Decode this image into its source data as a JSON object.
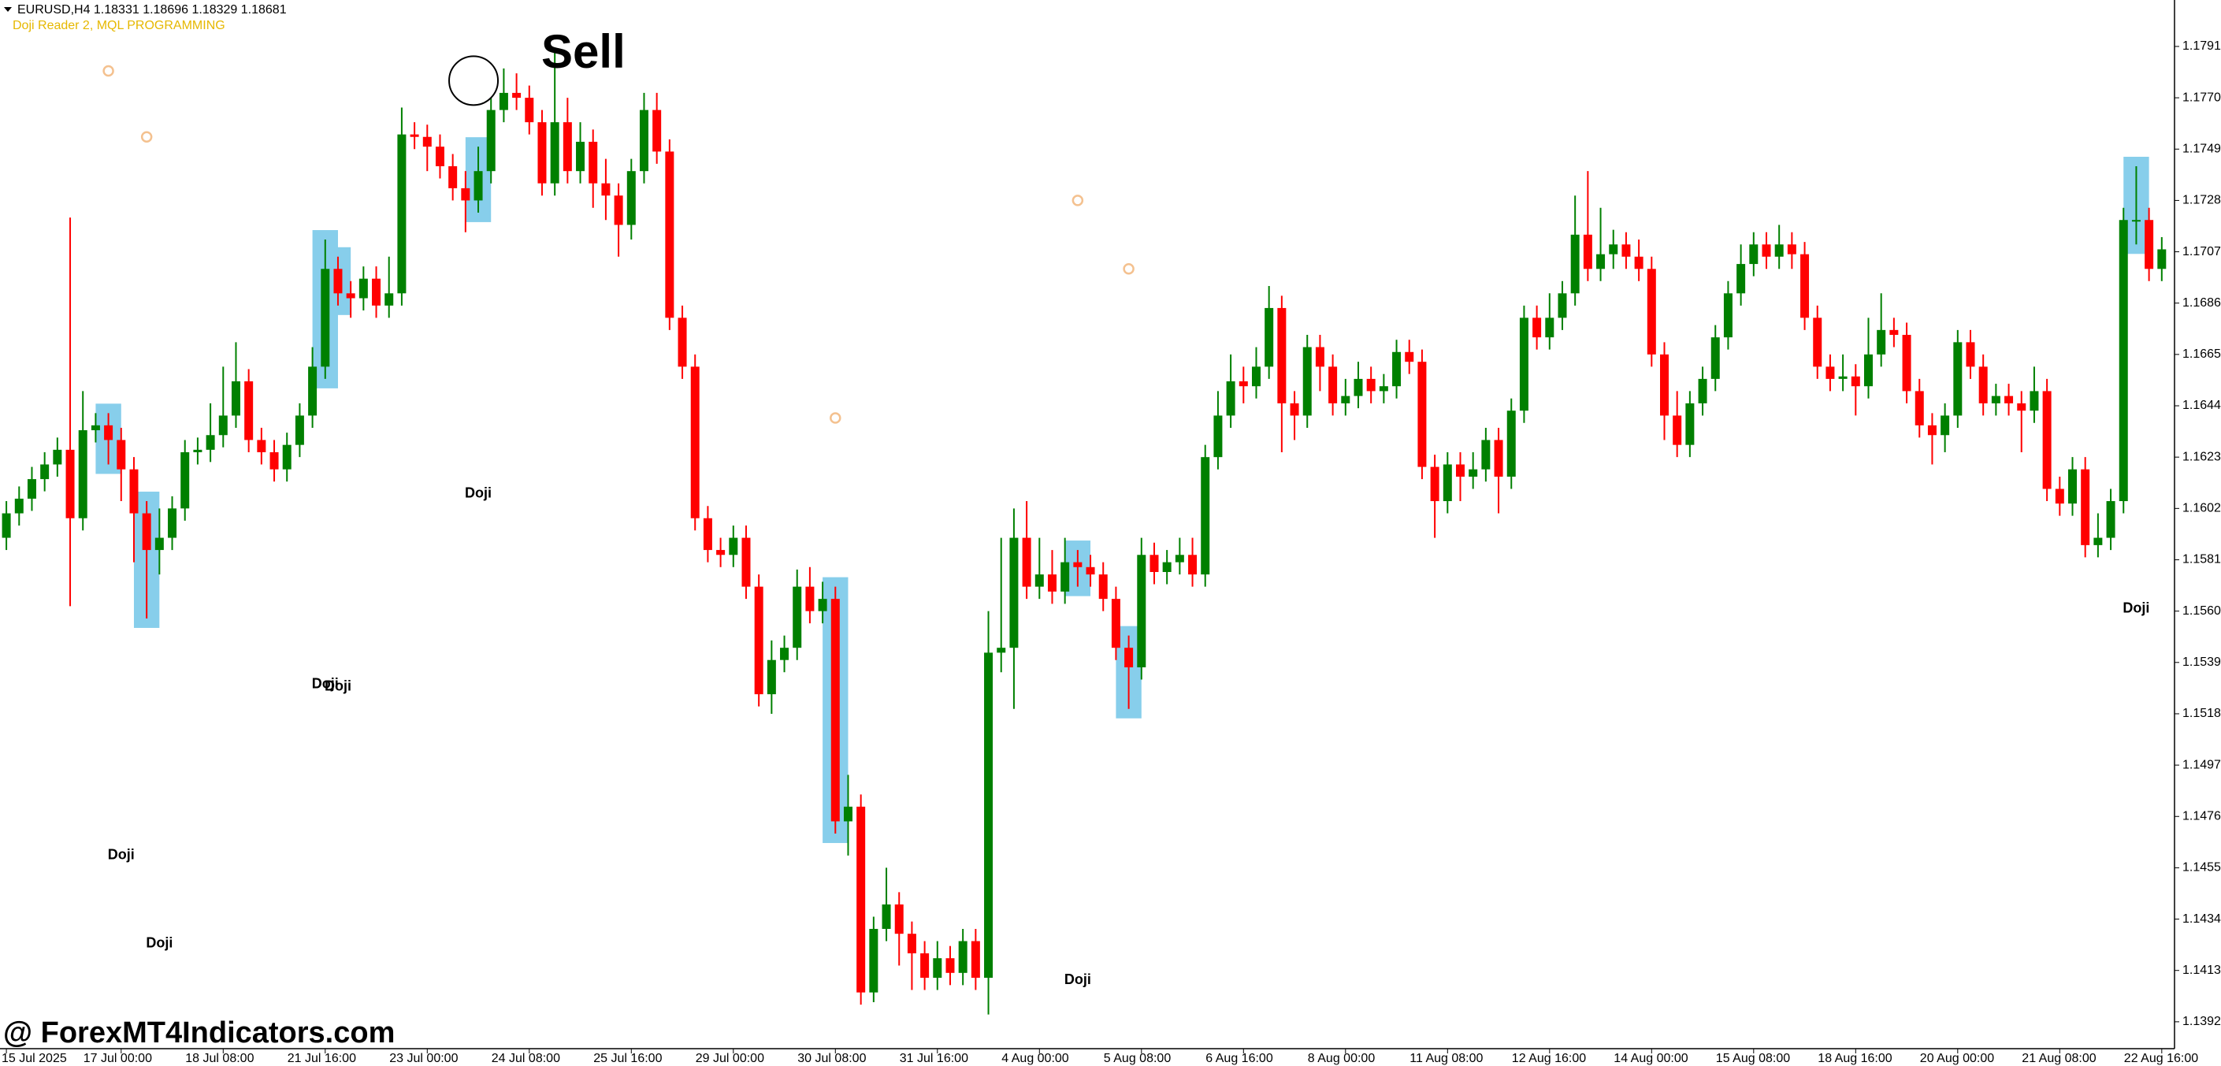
{
  "chart_data": {
    "type": "candlestick",
    "title": "EURUSD,H4  1.18331 1.18696 1.18329 1.18681",
    "subtitle": "Doji Reader 2, MQL PROGRAMMING",
    "watermark": "@ ForexMT4Indicators.com",
    "up_color": "#008000",
    "down_color": "#ff0000",
    "highlight_color": "#87ceeb",
    "marker_color": "#f4c18f",
    "subtitle_color": "#e6b800",
    "open": [
      1.159,
      1.16,
      1.1606,
      1.1614,
      1.162,
      1.1626,
      1.1598,
      1.1634,
      1.1636,
      1.163,
      1.1618,
      1.16,
      1.1585,
      1.159,
      1.1602,
      1.1625,
      1.1626,
      1.1632,
      1.164,
      1.1654,
      1.163,
      1.1625,
      1.1618,
      1.1628,
      1.164,
      1.166,
      1.17,
      1.169,
      1.1688,
      1.1696,
      1.1685,
      1.169,
      1.1755,
      1.1754,
      1.175,
      1.1742,
      1.1733,
      1.1728,
      1.174,
      1.1765,
      1.1772,
      1.177,
      1.176,
      1.1735,
      1.176,
      1.174,
      1.1752,
      1.1735,
      1.173,
      1.1718,
      1.174,
      1.1765,
      1.1748,
      1.168,
      1.166,
      1.1598,
      1.1585,
      1.1583,
      1.159,
      1.157,
      1.1526,
      1.154,
      1.1545,
      1.157,
      1.156,
      1.1565,
      1.1474,
      1.148,
      1.1404,
      1.143,
      1.144,
      1.1428,
      1.142,
      1.141,
      1.1418,
      1.1412,
      1.1425,
      1.141,
      1.1543,
      1.1545,
      1.159,
      1.157,
      1.1575,
      1.1568,
      1.158,
      1.1578,
      1.1575,
      1.1565,
      1.1545,
      1.1537,
      1.1583,
      1.1576,
      1.158,
      1.1583,
      1.1575,
      1.1623,
      1.164,
      1.1654,
      1.1652,
      1.166,
      1.1684,
      1.1645,
      1.164,
      1.1668,
      1.166,
      1.1645,
      1.1648,
      1.1655,
      1.165,
      1.1652,
      1.1666,
      1.1662,
      1.1619,
      1.1605,
      1.162,
      1.1615,
      1.1618,
      1.163,
      1.1615,
      1.1642,
      1.168,
      1.1672,
      1.168,
      1.169,
      1.1714,
      1.17,
      1.1706,
      1.171,
      1.1705,
      1.17,
      1.1665,
      1.164,
      1.1628,
      1.1645,
      1.1655,
      1.1672,
      1.169,
      1.1702,
      1.171,
      1.1705,
      1.171,
      1.1706,
      1.168,
      1.166,
      1.1655,
      1.1656,
      1.1652,
      1.1665,
      1.1675,
      1.1673,
      1.165,
      1.1636,
      1.1632,
      1.164,
      1.167,
      1.166,
      1.1645,
      1.1648,
      1.1645,
      1.1642,
      1.165,
      1.161,
      1.1604,
      1.1618,
      1.1587,
      1.159,
      1.1605,
      1.172,
      1.172,
      1.17
    ],
    "high": [
      1.1605,
      1.1611,
      1.1619,
      1.1625,
      1.1631,
      1.1721,
      1.165,
      1.1641,
      1.1641,
      1.1635,
      1.1623,
      1.1605,
      1.1602,
      1.1607,
      1.163,
      1.1631,
      1.1645,
      1.166,
      1.167,
      1.1659,
      1.1635,
      1.163,
      1.1633,
      1.1645,
      1.1668,
      1.1712,
      1.1705,
      1.1695,
      1.1701,
      1.1701,
      1.1705,
      1.1766,
      1.176,
      1.1759,
      1.1755,
      1.1747,
      1.174,
      1.175,
      1.177,
      1.1782,
      1.178,
      1.1775,
      1.1765,
      1.179,
      1.177,
      1.176,
      1.1757,
      1.1745,
      1.1735,
      1.1745,
      1.1772,
      1.1772,
      1.1753,
      1.1685,
      1.1665,
      1.1603,
      1.159,
      1.1595,
      1.1595,
      1.1575,
      1.1548,
      1.155,
      1.1577,
      1.1578,
      1.1572,
      1.157,
      1.1493,
      1.1485,
      1.1435,
      1.1455,
      1.1445,
      1.1433,
      1.1425,
      1.1425,
      1.1423,
      1.143,
      1.143,
      1.156,
      1.159,
      1.1602,
      1.1605,
      1.159,
      1.1585,
      1.159,
      1.1585,
      1.1583,
      1.158,
      1.157,
      1.155,
      1.159,
      1.1588,
      1.1585,
      1.159,
      1.159,
      1.1628,
      1.165,
      1.1665,
      1.166,
      1.1668,
      1.1693,
      1.1689,
      1.165,
      1.1673,
      1.1673,
      1.1665,
      1.1655,
      1.1662,
      1.166,
      1.1657,
      1.1671,
      1.1671,
      1.1667,
      1.1624,
      1.1625,
      1.1625,
      1.1625,
      1.1635,
      1.1635,
      1.1647,
      1.1685,
      1.1685,
      1.169,
      1.1695,
      1.173,
      1.174,
      1.1725,
      1.1716,
      1.1715,
      1.1712,
      1.1705,
      1.167,
      1.165,
      1.165,
      1.166,
      1.1677,
      1.1695,
      1.171,
      1.1715,
      1.1715,
      1.1718,
      1.1715,
      1.1711,
      1.1685,
      1.1665,
      1.1665,
      1.1661,
      1.168,
      1.169,
      1.168,
      1.1678,
      1.1655,
      1.1641,
      1.1645,
      1.1675,
      1.1675,
      1.1665,
      1.1653,
      1.1653,
      1.165,
      1.166,
      1.1655,
      1.1615,
      1.1623,
      1.1623,
      1.16,
      1.161,
      1.1725,
      1.1742,
      1.1725,
      1.1713
    ],
    "low": [
      1.1585,
      1.1595,
      1.1601,
      1.1609,
      1.1615,
      1.1562,
      1.1593,
      1.1629,
      1.162,
      1.1605,
      1.158,
      1.1557,
      1.1575,
      1.1585,
      1.1597,
      1.162,
      1.1621,
      1.1627,
      1.1635,
      1.1625,
      1.162,
      1.1613,
      1.1613,
      1.1623,
      1.1635,
      1.1655,
      1.1685,
      1.168,
      1.1683,
      1.168,
      1.168,
      1.1685,
      1.1749,
      1.174,
      1.1737,
      1.1728,
      1.1715,
      1.1723,
      1.1735,
      1.176,
      1.1765,
      1.1755,
      1.173,
      1.173,
      1.1735,
      1.1735,
      1.1725,
      1.172,
      1.1705,
      1.1712,
      1.1735,
      1.1743,
      1.1675,
      1.1655,
      1.1593,
      1.158,
      1.1578,
      1.1578,
      1.1565,
      1.1521,
      1.1518,
      1.1535,
      1.154,
      1.1555,
      1.1555,
      1.1469,
      1.146,
      1.1399,
      1.14,
      1.1425,
      1.1415,
      1.1405,
      1.1405,
      1.1405,
      1.1407,
      1.1407,
      1.1405,
      1.1395,
      1.1535,
      1.152,
      1.1565,
      1.1565,
      1.1563,
      1.1563,
      1.157,
      1.157,
      1.156,
      1.154,
      1.152,
      1.1532,
      1.1571,
      1.1571,
      1.1575,
      1.157,
      1.157,
      1.1618,
      1.1635,
      1.1645,
      1.1647,
      1.1655,
      1.1625,
      1.163,
      1.1635,
      1.165,
      1.164,
      1.164,
      1.1643,
      1.1645,
      1.1645,
      1.1647,
      1.1657,
      1.1614,
      1.159,
      1.16,
      1.1605,
      1.161,
      1.1613,
      1.16,
      1.161,
      1.1637,
      1.1667,
      1.1667,
      1.1675,
      1.1685,
      1.1695,
      1.1695,
      1.17,
      1.17,
      1.1695,
      1.166,
      1.163,
      1.1623,
      1.1623,
      1.164,
      1.165,
      1.1667,
      1.1685,
      1.1697,
      1.17,
      1.17,
      1.17,
      1.1675,
      1.1655,
      1.165,
      1.165,
      1.164,
      1.1647,
      1.166,
      1.1668,
      1.1645,
      1.1631,
      1.162,
      1.1625,
      1.1635,
      1.1655,
      1.164,
      1.164,
      1.164,
      1.1625,
      1.1637,
      1.1605,
      1.1599,
      1.1599,
      1.1582,
      1.1582,
      1.1585,
      1.16,
      1.171,
      1.1695,
      1.1695
    ],
    "close": [
      1.16,
      1.1606,
      1.1614,
      1.162,
      1.1626,
      1.1598,
      1.1634,
      1.1636,
      1.163,
      1.1618,
      1.16,
      1.1585,
      1.159,
      1.1602,
      1.1625,
      1.1626,
      1.1632,
      1.164,
      1.1654,
      1.163,
      1.1625,
      1.1618,
      1.1628,
      1.164,
      1.166,
      1.17,
      1.169,
      1.1688,
      1.1696,
      1.1685,
      1.169,
      1.1755,
      1.1754,
      1.175,
      1.1742,
      1.1733,
      1.1728,
      1.174,
      1.1765,
      1.1772,
      1.177,
      1.176,
      1.1735,
      1.176,
      1.174,
      1.1752,
      1.1735,
      1.173,
      1.1718,
      1.174,
      1.1765,
      1.1748,
      1.168,
      1.166,
      1.1598,
      1.1585,
      1.1583,
      1.159,
      1.157,
      1.1526,
      1.154,
      1.1545,
      1.157,
      1.156,
      1.1565,
      1.1474,
      1.148,
      1.1404,
      1.143,
      1.144,
      1.1428,
      1.142,
      1.141,
      1.1418,
      1.1412,
      1.1425,
      1.141,
      1.1543,
      1.1545,
      1.159,
      1.157,
      1.1575,
      1.1568,
      1.158,
      1.1578,
      1.1575,
      1.1565,
      1.1545,
      1.1537,
      1.1583,
      1.1576,
      1.158,
      1.1583,
      1.1575,
      1.1623,
      1.164,
      1.1654,
      1.1652,
      1.166,
      1.1684,
      1.1645,
      1.164,
      1.1668,
      1.166,
      1.1645,
      1.1648,
      1.1655,
      1.165,
      1.1652,
      1.1666,
      1.1662,
      1.1619,
      1.1605,
      1.162,
      1.1615,
      1.1618,
      1.163,
      1.1615,
      1.1642,
      1.168,
      1.1672,
      1.168,
      1.169,
      1.1714,
      1.17,
      1.1706,
      1.171,
      1.1705,
      1.17,
      1.1665,
      1.164,
      1.1628,
      1.1645,
      1.1655,
      1.1672,
      1.169,
      1.1702,
      1.171,
      1.1705,
      1.171,
      1.1706,
      1.168,
      1.166,
      1.1655,
      1.1656,
      1.1652,
      1.1665,
      1.1675,
      1.1673,
      1.165,
      1.1636,
      1.1632,
      1.164,
      1.167,
      1.166,
      1.1645,
      1.1648,
      1.1645,
      1.1642,
      1.165,
      1.161,
      1.1604,
      1.1618,
      1.1587,
      1.159,
      1.1605,
      1.172,
      1.172,
      1.17,
      1.1708
    ],
    "xlim": [
      -0.5,
      170
    ],
    "xticks": [
      {
        "value": 0,
        "label": "15 Jul 2025"
      },
      {
        "value": 9,
        "label": "17 Jul 00:00"
      },
      {
        "value": 17,
        "label": "18 Jul 08:00"
      },
      {
        "value": 25,
        "label": "21 Jul 16:00"
      },
      {
        "value": 33,
        "label": "23 Jul 00:00"
      },
      {
        "value": 41,
        "label": "24 Jul 08:00"
      },
      {
        "value": 49,
        "label": "25 Jul 16:00"
      },
      {
        "value": 57,
        "label": "29 Jul 00:00"
      },
      {
        "value": 65,
        "label": "30 Jul 08:00"
      },
      {
        "value": 73,
        "label": "31 Jul 16:00"
      },
      {
        "value": 81,
        "label": "4 Aug 00:00"
      },
      {
        "value": 89,
        "label": "5 Aug 08:00"
      },
      {
        "value": 97,
        "label": "6 Aug 16:00"
      },
      {
        "value": 105,
        "label": "8 Aug 00:00"
      },
      {
        "value": 113,
        "label": "11 Aug 08:00"
      },
      {
        "value": 121,
        "label": "12 Aug 16:00"
      },
      {
        "value": 129,
        "label": "14 Aug 00:00"
      },
      {
        "value": 137,
        "label": "15 Aug 08:00"
      },
      {
        "value": 145,
        "label": "18 Aug 16:00"
      },
      {
        "value": 153,
        "label": "20 Aug 00:00"
      },
      {
        "value": 161,
        "label": "21 Aug 08:00"
      },
      {
        "value": 169,
        "label": "22 Aug 16:00"
      }
    ],
    "ylim": [
      1.1381,
      1.181
    ],
    "yticks": [
      {
        "value": 1.1791,
        "label": "1.17910"
      },
      {
        "value": 1.177,
        "label": "1.17700"
      },
      {
        "value": 1.1749,
        "label": "1.17490"
      },
      {
        "value": 1.1728,
        "label": "1.17280"
      },
      {
        "value": 1.1707,
        "label": "1.17070"
      },
      {
        "value": 1.1686,
        "label": "1.16860"
      },
      {
        "value": 1.1665,
        "label": "1.16650"
      },
      {
        "value": 1.1644,
        "label": "1.16440"
      },
      {
        "value": 1.1623,
        "label": "1.16230"
      },
      {
        "value": 1.1602,
        "label": "1.16020"
      },
      {
        "value": 1.1581,
        "label": "1.15810"
      },
      {
        "value": 1.156,
        "label": "1.15600"
      },
      {
        "value": 1.1539,
        "label": "1.15390"
      },
      {
        "value": 1.1518,
        "label": "1.15180"
      },
      {
        "value": 1.1497,
        "label": "1.14970"
      },
      {
        "value": 1.1476,
        "label": "1.14760"
      },
      {
        "value": 1.1455,
        "label": "1.14550"
      },
      {
        "value": 1.1434,
        "label": "1.14340"
      },
      {
        "value": 1.1413,
        "label": "1.14130"
      },
      {
        "value": 1.1392,
        "label": "1.13920"
      }
    ],
    "doji_bars": [
      8,
      11,
      25,
      26,
      37,
      65,
      84,
      88,
      167
    ],
    "doji_labels": [
      {
        "text": "Doji",
        "bar": 37,
        "price": 1.1608
      },
      {
        "text": "Doji",
        "bar": 25,
        "price": 1.153
      },
      {
        "text": "Doji",
        "bar": 26,
        "price": 1.1529
      },
      {
        "text": "Doji",
        "bar": 9,
        "price": 1.146
      },
      {
        "text": "Doji",
        "bar": 12,
        "price": 1.1424
      },
      {
        "text": "Doji",
        "bar": 84,
        "price": 1.1409
      },
      {
        "text": "Doji",
        "bar": 167,
        "price": 1.1561
      }
    ],
    "markers": [
      {
        "bar": 8,
        "price": 1.1781
      },
      {
        "bar": 11,
        "price": 1.1754
      },
      {
        "bar": 65,
        "price": 1.1639
      },
      {
        "bar": 84,
        "price": 1.1728
      },
      {
        "bar": 88,
        "price": 1.17
      }
    ],
    "annotations": [
      {
        "text": "Sell",
        "bar": 37,
        "price": 1.1777
      }
    ]
  }
}
